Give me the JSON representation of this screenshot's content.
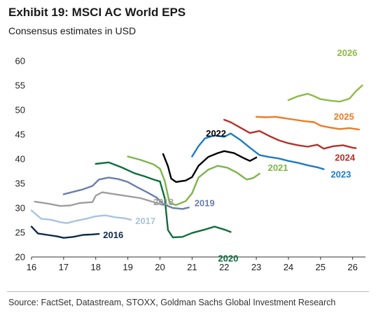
{
  "header": {
    "title": "Exhibit 19: MSCI AC World EPS",
    "subtitle": "Consensus estimates in USD"
  },
  "footer": {
    "source": "Source: FactSet, Datastream, STOXX, Goldman Sachs Global Investment Research"
  },
  "chart_data": {
    "type": "line",
    "title": "Exhibit 19: MSCI AC World EPS",
    "subtitle": "Consensus estimates in USD",
    "xlabel": "",
    "ylabel": "",
    "xlim": [
      16,
      26.4
    ],
    "ylim": [
      20,
      60
    ],
    "x_ticks": [
      "16",
      "17",
      "18",
      "19",
      "20",
      "21",
      "22",
      "23",
      "24",
      "25",
      "26"
    ],
    "y_ticks": [
      "20",
      "25",
      "30",
      "35",
      "40",
      "45",
      "50",
      "55",
      "60"
    ],
    "grid": false,
    "legend": "inline labels",
    "series": [
      {
        "name": "2016",
        "color": "#0d2a4a",
        "x": [
          16.0,
          16.2,
          16.5,
          16.8,
          17.0,
          17.3,
          17.6,
          17.9,
          18.1
        ],
        "y": [
          26.2,
          24.8,
          24.5,
          24.2,
          23.9,
          24.1,
          24.5,
          24.6,
          24.7
        ]
      },
      {
        "name": "2017",
        "color": "#a8c4dd",
        "x": [
          16.0,
          16.3,
          16.6,
          16.9,
          17.1,
          17.4,
          17.7,
          18.0,
          18.3,
          18.6,
          18.9,
          19.1
        ],
        "y": [
          29.5,
          27.8,
          27.6,
          27.1,
          26.9,
          27.4,
          27.8,
          28.3,
          28.5,
          28.1,
          27.9,
          27.6
        ]
      },
      {
        "name": "2018",
        "color": "#9e9e9e",
        "x": [
          16.1,
          16.5,
          16.9,
          17.2,
          17.5,
          17.9,
          18.0,
          18.2,
          18.6,
          19.0,
          19.4,
          19.8,
          20.1
        ],
        "y": [
          31.3,
          30.9,
          30.4,
          30.5,
          31.0,
          31.2,
          32.5,
          33.2,
          32.8,
          32.4,
          32.0,
          31.2,
          30.6
        ]
      },
      {
        "name": "2019",
        "color": "#6a7fa8",
        "x": [
          17.0,
          17.3,
          17.6,
          17.9,
          18.1,
          18.4,
          18.7,
          19.0,
          19.3,
          19.6,
          19.9,
          20.1,
          20.4,
          20.7,
          20.9
        ],
        "y": [
          32.8,
          33.3,
          33.8,
          34.5,
          35.8,
          36.2,
          35.9,
          35.3,
          34.2,
          33.2,
          32.1,
          30.8,
          30.0,
          29.8,
          30.1
        ]
      },
      {
        "name": "2020",
        "color": "#0e6e3d",
        "x": [
          18.0,
          18.4,
          18.8,
          19.2,
          19.5,
          19.8,
          20.0,
          20.15,
          20.25,
          20.4,
          20.7,
          21.0,
          21.4,
          21.7,
          22.0,
          22.2
        ],
        "y": [
          39.0,
          39.3,
          38.3,
          37.1,
          36.5,
          35.8,
          35.4,
          32.0,
          25.5,
          24.0,
          24.1,
          24.9,
          25.6,
          26.2,
          25.6,
          25.1
        ]
      },
      {
        "name": "2021",
        "color": "#7db548",
        "x": [
          19.0,
          19.4,
          19.8,
          20.0,
          20.15,
          20.3,
          20.5,
          20.8,
          21.0,
          21.2,
          21.5,
          21.8,
          22.1,
          22.4,
          22.7,
          22.9,
          23.1
        ],
        "y": [
          40.5,
          39.8,
          38.9,
          38.0,
          35.5,
          31.0,
          30.6,
          31.4,
          33.0,
          36.2,
          37.8,
          38.6,
          38.2,
          37.2,
          35.8,
          36.1,
          37.0
        ]
      },
      {
        "name": "2022",
        "color": "#000000",
        "x": [
          20.1,
          20.25,
          20.35,
          20.5,
          20.8,
          21.0,
          21.2,
          21.5,
          21.8,
          22.0,
          22.3,
          22.6,
          22.8,
          23.0
        ],
        "y": [
          41.0,
          38.5,
          36.0,
          35.3,
          35.6,
          36.3,
          38.6,
          40.4,
          41.2,
          41.6,
          41.2,
          40.2,
          39.6,
          40.3
        ]
      },
      {
        "name": "2023",
        "color": "#1e7bc2",
        "x": [
          21.0,
          21.2,
          21.4,
          21.7,
          22.0,
          22.2,
          22.5,
          22.8,
          23.1,
          23.4,
          23.7,
          24.0,
          24.3,
          24.6,
          24.9,
          25.1
        ],
        "y": [
          40.5,
          42.6,
          44.2,
          44.8,
          44.5,
          45.2,
          43.9,
          42.3,
          40.8,
          40.4,
          40.1,
          39.6,
          39.2,
          38.7,
          38.3,
          37.9
        ]
      },
      {
        "name": "2024",
        "color": "#b5312b",
        "x": [
          22.0,
          22.2,
          22.5,
          22.8,
          23.1,
          23.4,
          23.7,
          24.0,
          24.3,
          24.6,
          24.9,
          25.1,
          25.4,
          25.7,
          26.0,
          26.1
        ],
        "y": [
          48.0,
          47.5,
          46.4,
          45.3,
          45.7,
          44.7,
          43.8,
          43.2,
          42.8,
          42.5,
          42.9,
          42.1,
          42.6,
          42.8,
          42.3,
          42.2
        ]
      },
      {
        "name": "2025",
        "color": "#ef7a22",
        "x": [
          23.0,
          23.3,
          23.6,
          23.9,
          24.2,
          24.5,
          24.8,
          25.0,
          25.3,
          25.6,
          25.9,
          26.2
        ],
        "y": [
          48.6,
          48.5,
          48.6,
          48.3,
          48.0,
          47.7,
          47.5,
          46.8,
          46.4,
          46.1,
          46.3,
          46.0
        ]
      },
      {
        "name": "2026",
        "color": "#8dbb44",
        "x": [
          24.0,
          24.3,
          24.6,
          24.8,
          25.0,
          25.3,
          25.6,
          25.9,
          26.1,
          26.3
        ],
        "y": [
          52.0,
          52.8,
          53.3,
          52.8,
          52.2,
          51.9,
          51.7,
          52.3,
          53.8,
          55.0
        ]
      }
    ]
  }
}
